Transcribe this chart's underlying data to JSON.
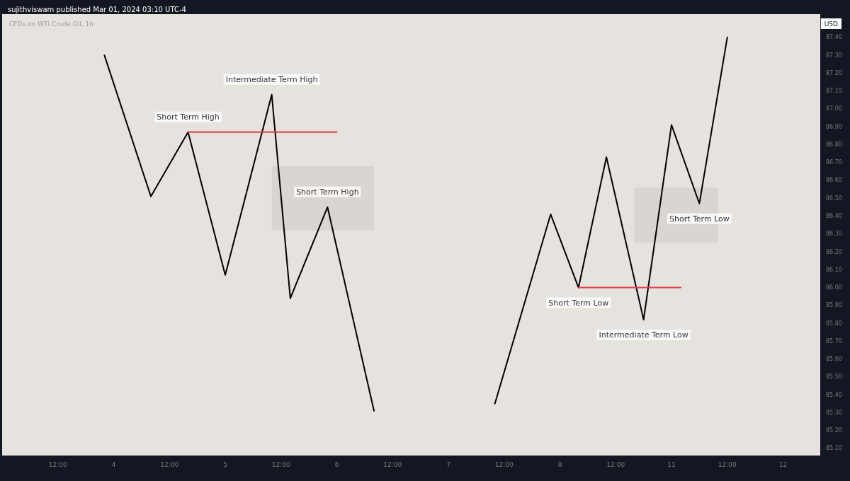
{
  "chart_data": {
    "type": "line",
    "title": "CFDs on WTI Crude Oil, 1h",
    "subtitle": "sujithviswam published Mar 01, 2024 03:10 UTC-4",
    "ylabel": "USD",
    "categories": [
      null,
      null,
      null,
      null,
      null,
      null,
      "12:00",
      null,
      null,
      null,
      null,
      null,
      "4",
      null,
      null,
      null,
      null,
      null,
      "12:00",
      null,
      null,
      null,
      null,
      null,
      "5",
      null,
      null,
      null,
      null,
      null,
      "12:00",
      null,
      null,
      null,
      null,
      null,
      "6",
      null,
      null,
      null,
      null,
      null,
      "12:00",
      null,
      null,
      null,
      null,
      null,
      "7",
      null,
      null,
      null,
      null,
      null,
      "12:00",
      null,
      null,
      null,
      null,
      null,
      "8",
      null,
      null,
      null,
      null,
      null,
      "12:00",
      null,
      null,
      null,
      null,
      null,
      "11",
      null,
      null,
      null,
      null,
      null,
      "12:00",
      null,
      null,
      null,
      null,
      null,
      "12",
      null,
      null,
      null,
      null
    ],
    "series": [
      {
        "color": "#000000",
        "values": [
          null,
          null,
          null,
          null,
          null,
          null,
          null,
          null,
          null,
          null,
          null,
          87.3,
          null,
          null,
          null,
          null,
          86.51,
          null,
          null,
          null,
          86.87,
          null,
          null,
          null,
          86.07,
          null,
          null,
          null,
          null,
          87.08,
          null,
          85.94,
          null,
          null,
          null,
          86.45,
          null,
          null,
          null,
          null,
          85.31,
          null,
          null,
          null,
          null,
          null,
          null,
          null,
          null,
          null,
          null,
          null,
          null,
          null,
          null,
          null,
          null,
          null,
          null,
          null,
          null,
          null,
          null,
          null,
          null,
          null,
          null,
          null,
          null,
          null,
          null,
          null,
          null,
          null,
          null,
          null,
          null,
          null,
          null,
          null,
          null,
          null,
          null,
          null,
          null,
          null,
          null,
          null,
          null
        ]
      },
      {
        "color": "#000000",
        "values": [
          null,
          null,
          null,
          null,
          null,
          null,
          null,
          null,
          null,
          null,
          null,
          null,
          null,
          null,
          null,
          null,
          null,
          null,
          null,
          null,
          null,
          null,
          null,
          null,
          null,
          null,
          null,
          null,
          null,
          null,
          null,
          null,
          null,
          null,
          null,
          null,
          null,
          null,
          null,
          null,
          null,
          null,
          null,
          null,
          null,
          null,
          null,
          null,
          null,
          null,
          null,
          null,
          null,
          85.35,
          null,
          null,
          null,
          null,
          null,
          86.41,
          null,
          null,
          86.0,
          null,
          null,
          86.73,
          null,
          null,
          null,
          85.82,
          null,
          null,
          86.91,
          null,
          null,
          86.47,
          null,
          null,
          87.4,
          null,
          null,
          null,
          null,
          null,
          null,
          null,
          null,
          null,
          null
        ]
      },
      {
        "color": "#e0404a",
        "values": [
          null,
          null,
          null,
          null,
          null,
          null,
          null,
          null,
          null,
          null,
          null,
          null,
          null,
          null,
          null,
          null,
          null,
          null,
          null,
          null,
          86.87,
          null,
          null,
          null,
          null,
          null,
          null,
          null,
          null,
          null,
          null,
          null,
          null,
          null,
          null,
          null,
          86.87,
          null,
          null,
          null,
          null,
          null,
          null,
          null,
          null,
          null,
          null,
          null,
          null,
          null,
          null,
          null,
          null,
          null,
          null,
          null,
          null,
          null,
          null,
          null,
          null,
          null,
          null,
          null,
          null,
          null,
          null,
          null,
          null,
          null,
          null,
          null,
          null,
          null,
          null,
          null,
          null,
          null,
          null,
          null,
          null,
          null,
          null,
          null,
          null,
          null,
          null,
          null,
          null
        ]
      },
      {
        "color": "#e0404a",
        "values": [
          null,
          null,
          null,
          null,
          null,
          null,
          null,
          null,
          null,
          null,
          null,
          null,
          null,
          null,
          null,
          null,
          null,
          null,
          null,
          null,
          null,
          null,
          null,
          null,
          null,
          null,
          null,
          null,
          null,
          null,
          null,
          null,
          null,
          null,
          null,
          null,
          null,
          null,
          null,
          null,
          null,
          null,
          null,
          null,
          null,
          null,
          null,
          null,
          null,
          null,
          null,
          null,
          null,
          null,
          null,
          null,
          null,
          null,
          null,
          null,
          null,
          null,
          86.0,
          null,
          null,
          null,
          null,
          null,
          null,
          null,
          null,
          null,
          null,
          86.0,
          null,
          null,
          null,
          null,
          null,
          null,
          null,
          null,
          null,
          null,
          null,
          null,
          null,
          null,
          null
        ]
      },
      {
        "color": "#d9d5d1",
        "values": [
          null,
          null,
          null,
          null,
          null,
          null,
          null,
          null,
          null,
          null,
          null,
          null,
          null,
          null,
          null,
          null,
          null,
          null,
          null,
          null,
          null,
          null,
          null,
          null,
          null,
          null,
          null,
          null,
          null,
          null,
          null,
          null,
          null,
          null,
          null,
          null,
          null,
          null,
          null,
          null,
          null,
          null,
          null,
          null,
          null,
          null,
          null,
          null,
          null,
          null,
          null,
          null,
          null,
          null,
          null,
          null,
          null,
          null,
          null,
          null,
          null,
          null,
          null,
          null,
          null,
          null,
          null,
          null,
          null,
          null,
          null,
          null,
          null,
          null,
          null,
          null,
          null,
          null,
          null,
          null,
          null,
          null,
          null,
          null,
          null,
          null,
          null,
          null,
          null
        ],
        "lower": [
          null,
          null,
          null,
          null,
          null,
          null,
          null,
          null,
          null,
          null,
          null,
          null,
          null,
          null,
          null,
          null,
          null,
          null,
          null,
          null,
          null,
          null,
          null,
          null,
          null,
          null,
          null,
          null,
          null,
          86.32,
          86.32,
          86.32,
          86.32,
          86.32,
          86.32,
          86.32,
          86.32,
          86.32,
          86.32,
          86.32,
          86.32,
          null,
          null,
          null,
          null,
          null,
          null,
          null,
          null,
          null,
          null,
          null,
          null,
          null,
          null,
          null,
          null,
          null,
          null,
          null,
          null,
          null,
          null,
          null,
          null,
          null,
          null,
          null,
          null,
          null,
          null,
          null,
          null,
          null,
          null,
          null,
          null,
          null,
          null,
          null,
          null,
          null,
          null,
          null,
          null,
          null,
          null,
          null,
          null
        ],
        "upper": [
          null,
          null,
          null,
          null,
          null,
          null,
          null,
          null,
          null,
          null,
          null,
          null,
          null,
          null,
          null,
          null,
          null,
          null,
          null,
          null,
          null,
          null,
          null,
          null,
          null,
          null,
          null,
          null,
          null,
          86.68,
          86.68,
          86.68,
          86.68,
          86.68,
          86.68,
          86.68,
          86.68,
          86.68,
          86.68,
          86.68,
          86.68,
          null,
          null,
          null,
          null,
          null,
          null,
          null,
          null,
          null,
          null,
          null,
          null,
          null,
          null,
          null,
          null,
          null,
          null,
          null,
          null,
          null,
          null,
          null,
          null,
          null,
          null,
          null,
          null,
          null,
          null,
          null,
          null,
          null,
          null,
          null,
          null,
          null,
          null,
          null,
          null,
          null,
          null,
          null,
          null,
          null,
          null,
          null,
          null
        ]
      },
      {
        "color": "#d9d5d1",
        "values": [
          null,
          null,
          null,
          null,
          null,
          null,
          null,
          null,
          null,
          null,
          null,
          null,
          null,
          null,
          null,
          null,
          null,
          null,
          null,
          null,
          null,
          null,
          null,
          null,
          null,
          null,
          null,
          null,
          null,
          null,
          null,
          null,
          null,
          null,
          null,
          null,
          null,
          null,
          null,
          null,
          null,
          null,
          null,
          null,
          null,
          null,
          null,
          null,
          null,
          null,
          null,
          null,
          null,
          null,
          null,
          null,
          null,
          null,
          null,
          null,
          null,
          null,
          null,
          null,
          null,
          null,
          null,
          null,
          null,
          null,
          null,
          null,
          null,
          null,
          null,
          null,
          null,
          null,
          null,
          null,
          null,
          null,
          null,
          null,
          null,
          null,
          null,
          null,
          null
        ],
        "lower": [
          null,
          null,
          null,
          null,
          null,
          null,
          null,
          null,
          null,
          null,
          null,
          null,
          null,
          null,
          null,
          null,
          null,
          null,
          null,
          null,
          null,
          null,
          null,
          null,
          null,
          null,
          null,
          null,
          null,
          null,
          null,
          null,
          null,
          null,
          null,
          null,
          null,
          null,
          null,
          null,
          null,
          null,
          null,
          null,
          null,
          null,
          null,
          null,
          null,
          null,
          null,
          null,
          null,
          null,
          null,
          null,
          null,
          null,
          null,
          null,
          null,
          null,
          null,
          null,
          null,
          null,
          null,
          null,
          86.25,
          86.25,
          86.25,
          86.25,
          86.25,
          86.25,
          86.25,
          86.25,
          86.25,
          86.25,
          null,
          null,
          null,
          null,
          null,
          null,
          null,
          null,
          null,
          null,
          null
        ],
        "upper": [
          null,
          null,
          null,
          null,
          null,
          null,
          null,
          null,
          null,
          null,
          null,
          null,
          null,
          null,
          null,
          null,
          null,
          null,
          null,
          null,
          null,
          null,
          null,
          null,
          null,
          null,
          null,
          null,
          null,
          null,
          null,
          null,
          null,
          null,
          null,
          null,
          null,
          null,
          null,
          null,
          null,
          null,
          null,
          null,
          null,
          null,
          null,
          null,
          null,
          null,
          null,
          null,
          null,
          null,
          null,
          null,
          null,
          null,
          null,
          null,
          null,
          null,
          null,
          null,
          null,
          null,
          null,
          null,
          86.56,
          86.56,
          86.56,
          86.56,
          86.56,
          86.56,
          86.56,
          86.56,
          86.56,
          86.56,
          null,
          null,
          null,
          null,
          null,
          null,
          null,
          null,
          null,
          null,
          null
        ]
      }
    ],
    "annotations": [
      {
        "text": "Short Term High",
        "y": 86.87
      },
      {
        "text": "Intermediate Term High",
        "y": 87.08
      },
      {
        "text": "Short Term High",
        "y": 86.45
      },
      {
        "text": "Short Term Low",
        "y": 86.0
      },
      {
        "text": "Intermediate Term Low",
        "y": 85.82
      },
      {
        "text": "Short Term Low",
        "y": 86.47
      }
    ],
    "ylim": [
      85.06,
      87.53
    ],
    "yticks": [
      {
        "value": 85.1,
        "label": "85.10"
      },
      {
        "value": 85.2,
        "label": "85.20"
      },
      {
        "value": 85.3,
        "label": "85.30"
      },
      {
        "value": 85.4,
        "label": "85.40"
      },
      {
        "value": 85.5,
        "label": "85.50"
      },
      {
        "value": 85.6,
        "label": "85.60"
      },
      {
        "value": 85.7,
        "label": "85.70"
      },
      {
        "value": 85.8,
        "label": "85.80"
      },
      {
        "value": 85.9,
        "label": "85.90"
      },
      {
        "value": 86.0,
        "label": "86.00"
      },
      {
        "value": 86.1,
        "label": "86.10"
      },
      {
        "value": 86.2,
        "label": "86.20"
      },
      {
        "value": 86.3,
        "label": "86.30"
      },
      {
        "value": 86.4,
        "label": "86.40"
      },
      {
        "value": 86.5,
        "label": "86.50"
      },
      {
        "value": 86.6,
        "label": "86.60"
      },
      {
        "value": 86.7,
        "label": "86.70"
      },
      {
        "value": 86.8,
        "label": "86.80"
      },
      {
        "value": 86.9,
        "label": "86.90"
      },
      {
        "value": 87.0,
        "label": "87.00"
      },
      {
        "value": 87.1,
        "label": "87.10"
      },
      {
        "value": 87.2,
        "label": "87.20"
      },
      {
        "value": 87.3,
        "label": "87.30"
      },
      {
        "value": 87.4,
        "label": "87.40"
      }
    ],
    "grid": false,
    "marker": "none",
    "line_style": "solid"
  }
}
